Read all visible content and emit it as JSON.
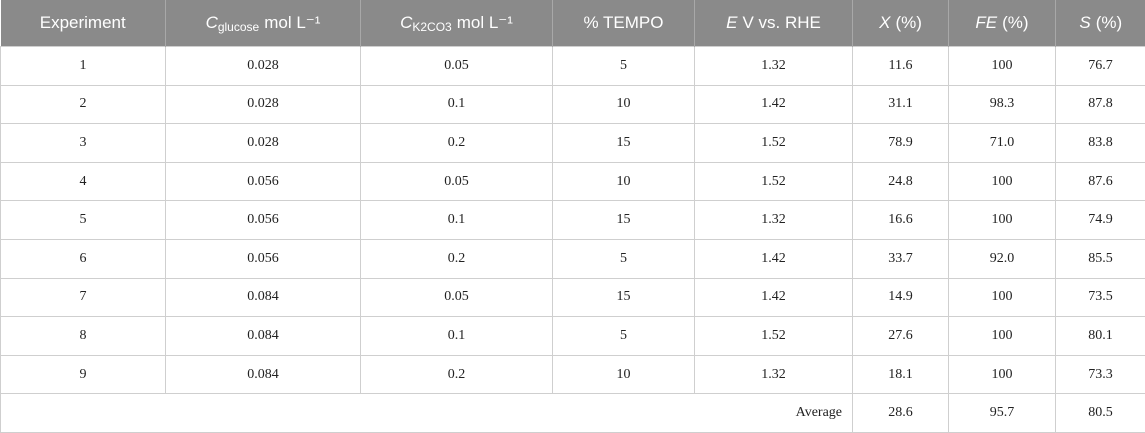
{
  "table": {
    "headers": [
      {
        "text": "Experiment"
      },
      {
        "italic": "C",
        "sub": "glucose",
        "text": "mol L⁻¹"
      },
      {
        "italic": "C",
        "sub": "K2CO3",
        "text": "mol L⁻¹"
      },
      {
        "text": "% TEMPO"
      },
      {
        "italic": "E",
        "text": "V vs. RHE"
      },
      {
        "italic": "X",
        "text": "(%)"
      },
      {
        "italic": "FE",
        "text": "(%)"
      },
      {
        "italic": "S",
        "text": "(%)"
      }
    ],
    "rows": [
      [
        "1",
        "0.028",
        "0.05",
        "5",
        "1.32",
        "11.6",
        "100",
        "76.7"
      ],
      [
        "2",
        "0.028",
        "0.1",
        "10",
        "1.42",
        "31.1",
        "98.3",
        "87.8"
      ],
      [
        "3",
        "0.028",
        "0.2",
        "15",
        "1.52",
        "78.9",
        "71.0",
        "83.8"
      ],
      [
        "4",
        "0.056",
        "0.05",
        "10",
        "1.52",
        "24.8",
        "100",
        "87.6"
      ],
      [
        "5",
        "0.056",
        "0.1",
        "15",
        "1.32",
        "16.6",
        "100",
        "74.9"
      ],
      [
        "6",
        "0.056",
        "0.2",
        "5",
        "1.42",
        "33.7",
        "92.0",
        "85.5"
      ],
      [
        "7",
        "0.084",
        "0.05",
        "15",
        "1.42",
        "14.9",
        "100",
        "73.5"
      ],
      [
        "8",
        "0.084",
        "0.1",
        "5",
        "1.52",
        "27.6",
        "100",
        "80.1"
      ],
      [
        "9",
        "0.084",
        "0.2",
        "10",
        "1.32",
        "18.1",
        "100",
        "73.3"
      ]
    ],
    "footer": {
      "label": "Average",
      "values": [
        "28.6",
        "95.7",
        "80.5"
      ]
    }
  }
}
